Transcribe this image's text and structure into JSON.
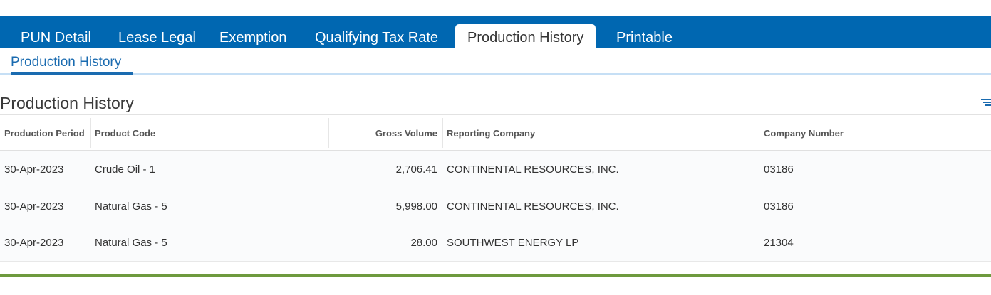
{
  "tabs": [
    {
      "label": "PUN Detail",
      "active": false
    },
    {
      "label": "Lease Legal",
      "active": false
    },
    {
      "label": "Exemption",
      "active": false
    },
    {
      "label": "Qualifying Tax Rate",
      "active": false
    },
    {
      "label": "Production History",
      "active": true
    },
    {
      "label": "Printable",
      "active": false
    }
  ],
  "subtab": {
    "label": "Production History"
  },
  "section": {
    "title": "Production History",
    "filter_icon": "filter-icon"
  },
  "table": {
    "columns": [
      "Production Period",
      "Product Code",
      "Gross Volume",
      "Reporting Company",
      "Company Number"
    ],
    "rows": [
      [
        "30-Apr-2023",
        "Crude Oil - 1",
        "2,706.41",
        "CONTINENTAL RESOURCES, INC.",
        "03186"
      ],
      [
        "30-Apr-2023",
        "Natural Gas - 5",
        "5,998.00",
        "CONTINENTAL RESOURCES, INC.",
        "03186"
      ],
      [
        "30-Apr-2023",
        "Natural Gas - 5",
        "28.00",
        "SOUTHWEST ENERGY LP",
        "21304"
      ]
    ]
  },
  "colors": {
    "tab_bar": "#0067b1",
    "subtab_accent": "#1a6bb0",
    "footer_bar": "#6e9a3e"
  }
}
